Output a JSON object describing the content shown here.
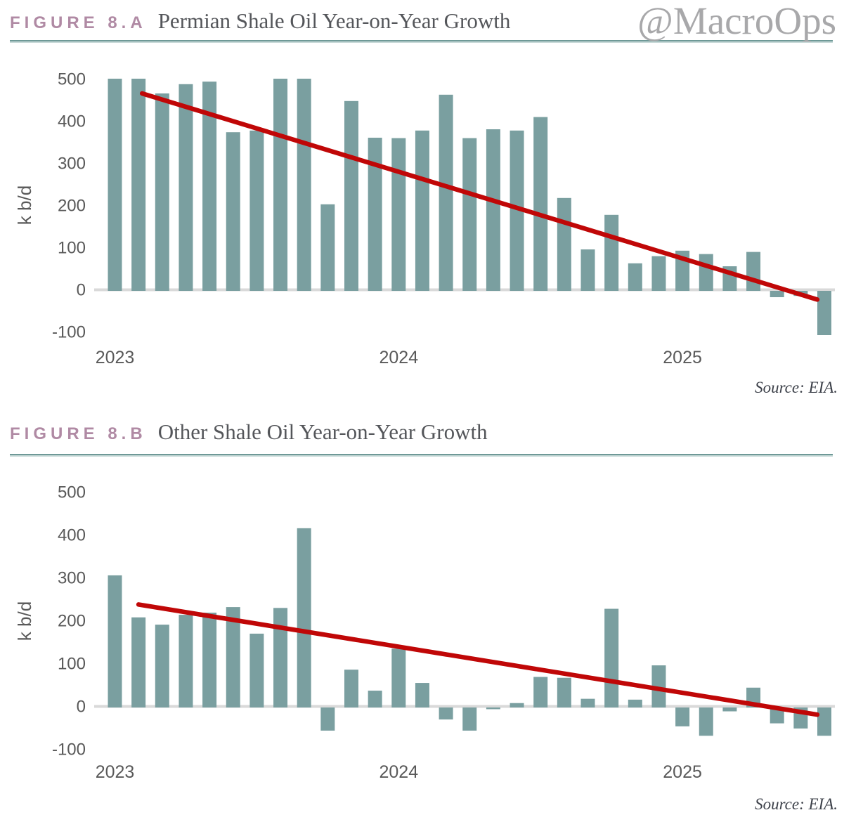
{
  "watermark": "@MacroOps",
  "figures": [
    {
      "label": "FIGURE 8.A",
      "title": "Permian Shale Oil Year-on-Year Growth",
      "source": "Source: EIA."
    },
    {
      "label": "FIGURE 8.B",
      "title": "Other Shale Oil Year-on-Year Growth",
      "source": "Source: EIA."
    }
  ],
  "colors": {
    "bar": "#7a9fa0",
    "trend_line": "#c00707",
    "axis_text": "#595959",
    "zero_line": "#d9d9d9",
    "figure_label": "#b08aa4",
    "title_text": "#54565a",
    "watermark": "#a8a8aa",
    "header_rule": "#6e9997",
    "source_text": "#3c4049"
  },
  "chart_data": [
    {
      "type": "bar",
      "figure_label": "FIGURE 8.A",
      "title": "Permian Shale Oil Year-on-Year Growth",
      "xlabel": "",
      "ylabel": "k b/d",
      "source": "Source: EIA.",
      "ylim": [
        -100,
        500
      ],
      "yticks": [
        500,
        400,
        300,
        200,
        100,
        0,
        -100
      ],
      "xtick_labels": [
        "2023",
        "2024",
        "2025"
      ],
      "grid": false,
      "legend": false,
      "x_months": [
        "2023-01",
        "2023-02",
        "2023-03",
        "2023-04",
        "2023-05",
        "2023-06",
        "2023-07",
        "2023-08",
        "2023-09",
        "2023-10",
        "2023-11",
        "2023-12",
        "2024-01",
        "2024-02",
        "2024-03",
        "2024-04",
        "2024-05",
        "2024-06",
        "2024-07",
        "2024-08",
        "2024-09",
        "2024-10",
        "2024-11",
        "2024-12",
        "2025-01",
        "2025-02",
        "2025-03",
        "2025-04",
        "2025-05",
        "2025-06",
        "2025-07"
      ],
      "values": [
        500,
        500,
        465,
        487,
        493,
        373,
        377,
        500,
        500,
        202,
        447,
        360,
        359,
        377,
        462,
        359,
        380,
        377,
        409,
        217,
        95,
        177,
        62,
        79,
        92,
        84,
        55,
        89,
        -15,
        -12,
        -105
      ],
      "trend_line": {
        "start_month_index": 1.15,
        "start_value": 465,
        "end_month_index": 29.7,
        "end_value": -24
      }
    },
    {
      "type": "bar",
      "figure_label": "FIGURE 8.B",
      "title": "Other Shale Oil Year-on-Year Growth",
      "xlabel": "",
      "ylabel": "k b/d",
      "source": "Source: EIA.",
      "ylim": [
        -100,
        500
      ],
      "yticks": [
        500,
        400,
        300,
        200,
        100,
        0,
        -100
      ],
      "xtick_labels": [
        "2023",
        "2024",
        "2025"
      ],
      "grid": false,
      "legend": false,
      "x_months": [
        "2023-01",
        "2023-02",
        "2023-03",
        "2023-04",
        "2023-05",
        "2023-06",
        "2023-07",
        "2023-08",
        "2023-09",
        "2023-10",
        "2023-11",
        "2023-12",
        "2024-01",
        "2024-02",
        "2024-03",
        "2024-04",
        "2024-05",
        "2024-06",
        "2024-07",
        "2024-08",
        "2024-09",
        "2024-10",
        "2024-11",
        "2024-12",
        "2025-01",
        "2025-02",
        "2025-03",
        "2025-04",
        "2025-05",
        "2025-06",
        "2025-07"
      ],
      "values": [
        305,
        207,
        190,
        213,
        218,
        231,
        169,
        229,
        415,
        -54,
        85,
        36,
        134,
        54,
        -28,
        -54,
        -4,
        7,
        68,
        66,
        17,
        227,
        15,
        95,
        -44,
        -66,
        -9,
        43,
        -37,
        -49,
        -66
      ],
      "trend_line": {
        "start_month_index": 1.0,
        "start_value": 237,
        "end_month_index": 29.7,
        "end_value": -20
      }
    }
  ]
}
